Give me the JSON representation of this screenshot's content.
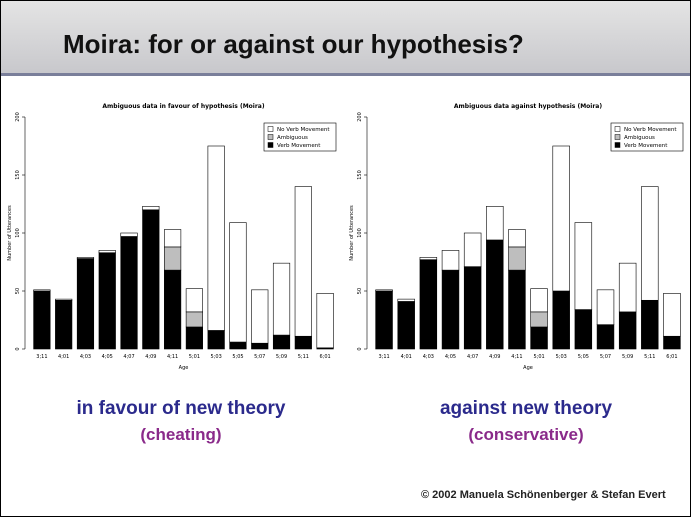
{
  "title": "Moira: for or against our hypothesis?",
  "chart_data": [
    {
      "type": "bar",
      "stacked": true,
      "title": "Ambiguous data in favour of hypothesis (Moira)",
      "xlabel": "Age",
      "ylabel": "Number of Utterances",
      "categories": [
        "3;11",
        "4;01",
        "4;03",
        "4;05",
        "4;07",
        "4;09",
        "4;11",
        "5;01",
        "5;03",
        "5;05",
        "5;07",
        "5;09",
        "5;11",
        "6;01"
      ],
      "series": [
        {
          "name": "Verb Movement",
          "color": "#000000",
          "values": [
            50,
            42,
            78,
            83,
            97,
            120,
            68,
            19,
            16,
            6,
            5,
            12,
            11,
            1
          ]
        },
        {
          "name": "Ambiguous",
          "color": "#bebebe",
          "values": [
            0,
            0,
            0,
            0,
            0,
            0,
            20,
            13,
            0,
            0,
            0,
            0,
            0,
            0
          ]
        },
        {
          "name": "No Verb Movement",
          "color": "#ffffff",
          "values": [
            1,
            1,
            1,
            2,
            3,
            3,
            15,
            20,
            159,
            103,
            46,
            62,
            129,
            47
          ]
        }
      ],
      "ylim": [
        0,
        200
      ],
      "yticks": [
        0,
        50,
        100,
        150,
        200
      ],
      "legend": "upper right"
    },
    {
      "type": "bar",
      "stacked": true,
      "title": "Ambiguous data against hypothesis (Moira)",
      "xlabel": "Age",
      "ylabel": "Number of Utterances",
      "categories": [
        "3;11",
        "4;01",
        "4;03",
        "4;05",
        "4;07",
        "4;09",
        "4;11",
        "5;01",
        "5;03",
        "5;05",
        "5;07",
        "5;09",
        "5;11",
        "6;01"
      ],
      "series": [
        {
          "name": "Verb Movement",
          "color": "#000000",
          "values": [
            50,
            41,
            77,
            68,
            71,
            94,
            68,
            19,
            50,
            34,
            21,
            32,
            42,
            11
          ]
        },
        {
          "name": "Ambiguous",
          "color": "#bebebe",
          "values": [
            0,
            0,
            0,
            0,
            0,
            0,
            20,
            13,
            0,
            0,
            0,
            0,
            0,
            0
          ]
        },
        {
          "name": "No Verb Movement",
          "color": "#ffffff",
          "values": [
            1,
            2,
            2,
            17,
            29,
            29,
            15,
            20,
            125,
            75,
            30,
            42,
            98,
            37
          ]
        }
      ],
      "ylim": [
        0,
        200
      ],
      "yticks": [
        0,
        50,
        100,
        150,
        200
      ],
      "legend": "upper right"
    }
  ],
  "panels": [
    {
      "caption": "in favour of new theory",
      "note": "(cheating)"
    },
    {
      "caption": "against new theory",
      "note": "(conservative)"
    }
  ],
  "footer": "© 2002  Manuela Schönenberger  & Stefan Evert"
}
